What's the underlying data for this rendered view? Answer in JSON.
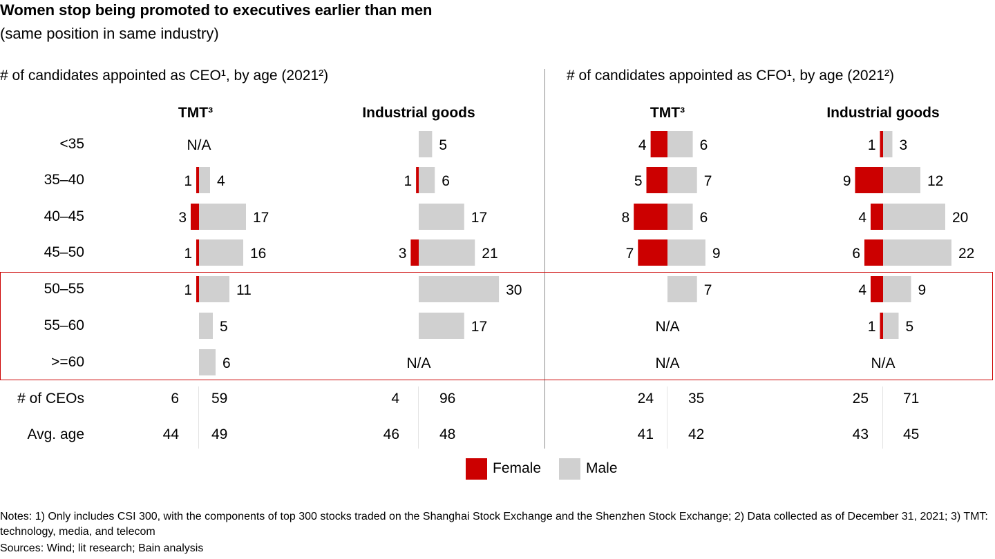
{
  "title": "Women stop being promoted to executives earlier than men",
  "subtitle": "(same position in same industry)",
  "colors": {
    "female": "#cc0000",
    "male": "#d0d0d0",
    "highlight": "#cc0000",
    "divider": "#8c8c8c"
  },
  "legend": {
    "female": "Female",
    "male": "Male"
  },
  "row_labels": [
    "<35",
    "35–40",
    "40–45",
    "45–50",
    "50–55",
    "55–60",
    ">=60"
  ],
  "summary_labels": {
    "count": "# of CEOs",
    "avg_age": "Avg. age"
  },
  "notes": "Notes: 1) Only includes CSI 300, with the components of top 300 stocks traded on the Shanghai Stock Exchange and the Shenzhen Stock Exchange; 2) Data collected as of December 31, 2021; 3) TMT: technology, media, and telecom",
  "sources": "Sources: Wind; lit research; Bain analysis",
  "na_label": "N/A",
  "chart_data": {
    "type": "bar",
    "subtype": "diverging-horizontal-bar",
    "title": "Women stop being promoted to executives earlier than men",
    "subtitle": "(same position in same industry)",
    "categories": [
      "<35",
      "35–40",
      "40–45",
      "45–50",
      "50–55",
      "55–60",
      ">=60"
    ],
    "highlighted_categories": [
      "50–55",
      "55–60",
      ">=60"
    ],
    "legend": [
      "Female",
      "Male"
    ],
    "legend_position": "bottom-center",
    "panels": [
      {
        "section": "# of candidates appointed as CEO¹, by age (2021²)",
        "industry": "TMT³",
        "female": [
          null,
          1,
          3,
          1,
          1,
          0,
          0
        ],
        "male": [
          null,
          4,
          17,
          16,
          11,
          5,
          6
        ],
        "na": [
          true,
          false,
          false,
          false,
          false,
          false,
          false
        ],
        "total_female": "6",
        "total_male": "59",
        "avg_age_female": "44",
        "avg_age_male": "49"
      },
      {
        "section": "# of candidates appointed as CEO¹, by age (2021²)",
        "industry": "Industrial goods",
        "female": [
          0,
          1,
          0,
          3,
          0,
          0,
          null
        ],
        "male": [
          5,
          6,
          17,
          21,
          30,
          17,
          null
        ],
        "na": [
          false,
          false,
          false,
          false,
          false,
          false,
          true
        ],
        "total_female": "4",
        "total_male": "96",
        "avg_age_female": "46",
        "avg_age_male": "48"
      },
      {
        "section": "# of candidates appointed as CFO¹, by age (2021²)",
        "industry": "TMT³",
        "female": [
          4,
          5,
          8,
          7,
          0,
          null,
          null
        ],
        "male": [
          6,
          7,
          6,
          9,
          7,
          null,
          null
        ],
        "na": [
          false,
          false,
          false,
          false,
          false,
          true,
          true
        ],
        "total_female": "24",
        "total_male": "35",
        "avg_age_female": "41",
        "avg_age_male": "42"
      },
      {
        "section": "# of candidates appointed as CFO¹, by age (2021²)",
        "industry": "Industrial goods",
        "female": [
          1,
          9,
          4,
          6,
          4,
          1,
          null
        ],
        "male": [
          3,
          12,
          20,
          22,
          9,
          5,
          null
        ],
        "na": [
          false,
          false,
          false,
          false,
          false,
          false,
          true
        ],
        "total_female": "25",
        "total_male": "71",
        "avg_age_female": "43",
        "avg_age_male": "45"
      }
    ]
  },
  "sections": {
    "ceo": "# of candidates appointed as CEO¹, by age (2021²)",
    "cfo": "# of candidates appointed as CFO¹, by age (2021²)"
  }
}
